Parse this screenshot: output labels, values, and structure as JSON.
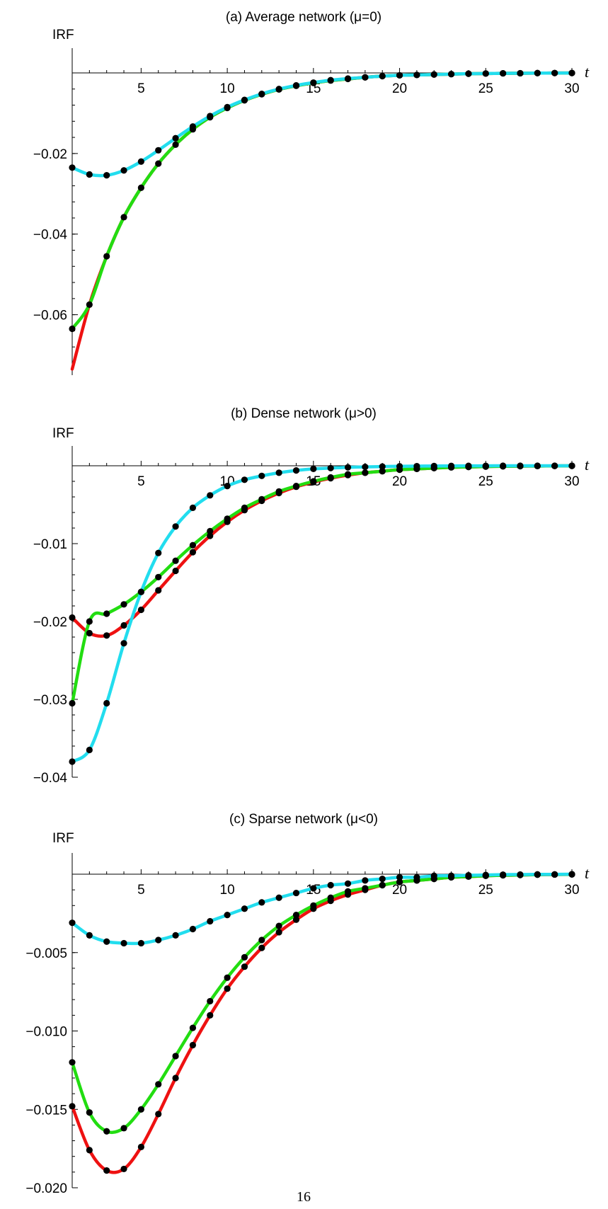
{
  "page_number": "16",
  "colors": {
    "red": "#ee1111",
    "green": "#22dd11",
    "cyan": "#22ddee",
    "marker": "#000000",
    "axis": "#000000"
  },
  "chart_data": [
    {
      "type": "line",
      "title": "(a) Average network (μ=0)",
      "ylabel": "IRF",
      "xlabel": "t",
      "xlim": [
        1,
        30
      ],
      "ylim": [
        -0.075,
        0
      ],
      "xticks": [
        5,
        10,
        15,
        20,
        25,
        30
      ],
      "xtick_labels": [
        "5",
        "10",
        "15",
        "20",
        "25",
        "30"
      ],
      "yticks": [
        -0.02,
        -0.04,
        -0.06
      ],
      "ytick_labels": [
        "-0.02",
        "-0.04",
        "-0.06"
      ],
      "grid": false,
      "markers_on": [
        "cyan",
        "green"
      ],
      "series": [
        {
          "color": "red",
          "x": [
            1,
            2,
            3,
            4,
            5,
            6,
            7,
            8,
            9,
            10,
            11,
            12,
            13,
            14,
            15,
            16,
            17,
            18,
            19,
            20,
            21,
            22,
            23,
            24,
            25,
            26,
            27,
            28,
            29,
            30
          ],
          "values": [
            -0.0735,
            -0.0575,
            -0.0455,
            -0.0358,
            -0.0285,
            -0.0225,
            -0.0178,
            -0.014,
            -0.011,
            -0.0087,
            -0.0068,
            -0.0053,
            -0.0041,
            -0.0032,
            -0.0025,
            -0.0019,
            -0.0015,
            -0.0011,
            -0.0008,
            -0.0006,
            -0.0005,
            -0.0004,
            -0.0003,
            -0.0002,
            -0.00015,
            -0.0001,
            -8e-05,
            -5e-05,
            -3e-05,
            -2e-05
          ]
        },
        {
          "color": "green",
          "x": [
            1,
            2,
            3,
            4,
            5,
            6,
            7,
            8,
            9,
            10,
            11,
            12,
            13,
            14,
            15,
            16,
            17,
            18,
            19,
            20,
            21,
            22,
            23,
            24,
            25,
            26,
            27,
            28,
            29,
            30
          ],
          "values": [
            -0.0635,
            -0.0575,
            -0.0455,
            -0.0358,
            -0.0285,
            -0.0225,
            -0.0178,
            -0.014,
            -0.011,
            -0.0087,
            -0.0068,
            -0.0053,
            -0.0041,
            -0.0032,
            -0.0025,
            -0.0019,
            -0.0015,
            -0.0011,
            -0.0008,
            -0.0006,
            -0.0005,
            -0.0004,
            -0.0003,
            -0.0002,
            -0.00015,
            -0.0001,
            -8e-05,
            -5e-05,
            -3e-05,
            -2e-05
          ]
        },
        {
          "color": "cyan",
          "x": [
            1,
            2,
            3,
            4,
            5,
            6,
            7,
            8,
            9,
            10,
            11,
            12,
            13,
            14,
            15,
            16,
            17,
            18,
            19,
            20,
            21,
            22,
            23,
            24,
            25,
            26,
            27,
            28,
            29,
            30
          ],
          "values": [
            -0.0235,
            -0.0252,
            -0.0254,
            -0.0242,
            -0.022,
            -0.0192,
            -0.0162,
            -0.0133,
            -0.0107,
            -0.0085,
            -0.0067,
            -0.0052,
            -0.004,
            -0.0031,
            -0.0024,
            -0.0018,
            -0.0014,
            -0.0011,
            -0.0008,
            -0.0006,
            -0.0005,
            -0.0004,
            -0.0003,
            -0.0002,
            -0.00015,
            -0.0001,
            -8e-05,
            -5e-05,
            -3e-05,
            -2e-05
          ]
        }
      ]
    },
    {
      "type": "line",
      "title": "(b) Dense network (μ>0)",
      "ylabel": "IRF",
      "xlabel": "t",
      "xlim": [
        1,
        30
      ],
      "ylim": [
        -0.04,
        0
      ],
      "xticks": [
        5,
        10,
        15,
        20,
        25,
        30
      ],
      "xtick_labels": [
        "5",
        "10",
        "15",
        "20",
        "25",
        "30"
      ],
      "yticks": [
        -0.01,
        -0.02,
        -0.03,
        -0.04
      ],
      "ytick_labels": [
        "-0.01",
        "-0.02",
        "-0.03",
        "-0.04"
      ],
      "grid": false,
      "markers_on": [
        "red",
        "green",
        "cyan"
      ],
      "series": [
        {
          "color": "red",
          "x": [
            1,
            2,
            3,
            4,
            5,
            6,
            7,
            8,
            9,
            10,
            11,
            12,
            13,
            14,
            15,
            16,
            17,
            18,
            19,
            20,
            21,
            22,
            23,
            24,
            25,
            26,
            27,
            28,
            29,
            30
          ],
          "values": [
            -0.0195,
            -0.0215,
            -0.0218,
            -0.0205,
            -0.0185,
            -0.016,
            -0.0135,
            -0.0111,
            -0.009,
            -0.0072,
            -0.0057,
            -0.0045,
            -0.0035,
            -0.0027,
            -0.0021,
            -0.0016,
            -0.0012,
            -0.0009,
            -0.0007,
            -0.0005,
            -0.0004,
            -0.0003,
            -0.0002,
            -0.00015,
            -0.0001,
            -7e-05,
            -5e-05,
            -3e-05,
            -2e-05,
            -1e-05
          ]
        },
        {
          "color": "green",
          "x": [
            1,
            2,
            3,
            4,
            5,
            6,
            7,
            8,
            9,
            10,
            11,
            12,
            13,
            14,
            15,
            16,
            17,
            18,
            19,
            20,
            21,
            22,
            23,
            24,
            25,
            26,
            27,
            28,
            29,
            30
          ],
          "values": [
            -0.0305,
            -0.02,
            -0.019,
            -0.0178,
            -0.0162,
            -0.0143,
            -0.0122,
            -0.0102,
            -0.0084,
            -0.0068,
            -0.0054,
            -0.0043,
            -0.0033,
            -0.0026,
            -0.002,
            -0.0015,
            -0.0011,
            -0.0009,
            -0.0007,
            -0.0005,
            -0.0004,
            -0.0003,
            -0.0002,
            -0.00015,
            -0.0001,
            -7e-05,
            -5e-05,
            -3e-05,
            -2e-05,
            -1e-05
          ]
        },
        {
          "color": "cyan",
          "x": [
            1,
            2,
            3,
            4,
            5,
            6,
            7,
            8,
            9,
            10,
            11,
            12,
            13,
            14,
            15,
            16,
            17,
            18,
            19,
            20,
            21,
            22,
            23,
            24,
            25,
            26,
            27,
            28,
            29,
            30
          ],
          "values": [
            -0.038,
            -0.0365,
            -0.0305,
            -0.0228,
            -0.0162,
            -0.0112,
            -0.0078,
            -0.0054,
            -0.0038,
            -0.0026,
            -0.0018,
            -0.0013,
            -0.0009,
            -0.0006,
            -0.0004,
            -0.0003,
            -0.0002,
            -0.00015,
            -0.0001,
            -7e-05,
            -5e-05,
            -3e-05,
            -2e-05,
            -1e-05,
            -1e-05,
            0,
            0,
            0,
            0,
            0
          ]
        }
      ]
    },
    {
      "type": "line",
      "title": "(c) Sparse network (μ<0)",
      "ylabel": "IRF",
      "xlabel": "t",
      "xlim": [
        1,
        30
      ],
      "ylim": [
        -0.02,
        0
      ],
      "xticks": [
        5,
        10,
        15,
        20,
        25,
        30
      ],
      "xtick_labels": [
        "5",
        "10",
        "15",
        "20",
        "25",
        "30"
      ],
      "yticks": [
        -0.005,
        -0.01,
        -0.015,
        -0.02
      ],
      "ytick_labels": [
        "-0.005",
        "-0.010",
        "-0.015",
        "-0.020"
      ],
      "grid": false,
      "markers_on": [
        "red",
        "green",
        "cyan"
      ],
      "series": [
        {
          "color": "red",
          "x": [
            1,
            2,
            3,
            4,
            5,
            6,
            7,
            8,
            9,
            10,
            11,
            12,
            13,
            14,
            15,
            16,
            17,
            18,
            19,
            20,
            21,
            22,
            23,
            24,
            25,
            26,
            27,
            28,
            29,
            30
          ],
          "values": [
            -0.0148,
            -0.0176,
            -0.0189,
            -0.0188,
            -0.0174,
            -0.0153,
            -0.013,
            -0.0109,
            -0.009,
            -0.0073,
            -0.0059,
            -0.0047,
            -0.0037,
            -0.0029,
            -0.0022,
            -0.0017,
            -0.0013,
            -0.001,
            -0.0007,
            -0.0005,
            -0.0004,
            -0.0003,
            -0.0002,
            -0.00015,
            -0.0001,
            -7e-05,
            -5e-05,
            -3e-05,
            -2e-05,
            -1e-05
          ]
        },
        {
          "color": "green",
          "x": [
            1,
            2,
            3,
            4,
            5,
            6,
            7,
            8,
            9,
            10,
            11,
            12,
            13,
            14,
            15,
            16,
            17,
            18,
            19,
            20,
            21,
            22,
            23,
            24,
            25,
            26,
            27,
            28,
            29,
            30
          ],
          "values": [
            -0.012,
            -0.0152,
            -0.0164,
            -0.0162,
            -0.015,
            -0.0134,
            -0.0116,
            -0.0098,
            -0.0081,
            -0.0066,
            -0.0053,
            -0.0042,
            -0.0033,
            -0.0026,
            -0.002,
            -0.0015,
            -0.0011,
            -0.0009,
            -0.0007,
            -0.0005,
            -0.0004,
            -0.0003,
            -0.0002,
            -0.00015,
            -0.0001,
            -7e-05,
            -5e-05,
            -3e-05,
            -2e-05,
            -1e-05
          ]
        },
        {
          "color": "cyan",
          "x": [
            1,
            2,
            3,
            4,
            5,
            6,
            7,
            8,
            9,
            10,
            11,
            12,
            13,
            14,
            15,
            16,
            17,
            18,
            19,
            20,
            21,
            22,
            23,
            24,
            25,
            26,
            27,
            28,
            29,
            30
          ],
          "values": [
            -0.0031,
            -0.0039,
            -0.0043,
            -0.0044,
            -0.0044,
            -0.0042,
            -0.0039,
            -0.0035,
            -0.003,
            -0.0026,
            -0.0022,
            -0.0018,
            -0.0015,
            -0.0012,
            -0.0009,
            -0.0007,
            -0.0006,
            -0.0004,
            -0.0003,
            -0.0002,
            -0.0002,
            -0.0001,
            -0.0001,
            -7e-05,
            -5e-05,
            -3e-05,
            -2e-05,
            -1e-05,
            -1e-05,
            0
          ]
        }
      ]
    }
  ]
}
